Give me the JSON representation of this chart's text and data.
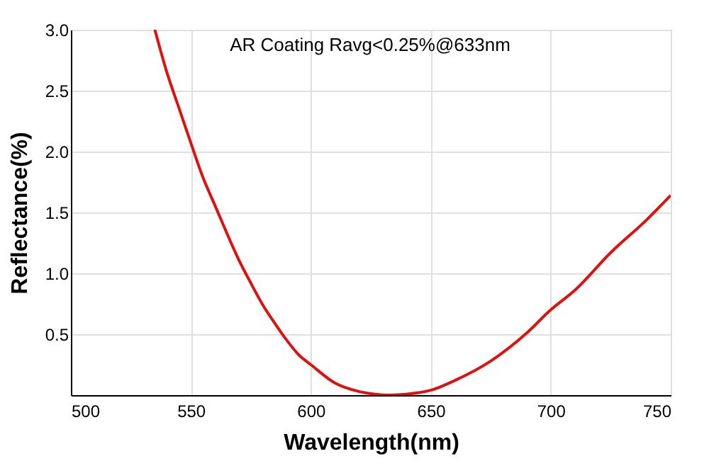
{
  "chart_data": {
    "type": "line",
    "xlabel": "Wavelength(nm)",
    "ylabel": "Reflectance(%)",
    "annotations": [
      "AR Coating Ravg<0.25%@633nm"
    ],
    "x": [
      535,
      540,
      545,
      550,
      555,
      560,
      565,
      570,
      575,
      580,
      585,
      590,
      595,
      600,
      610,
      620,
      633,
      645,
      650,
      660,
      675,
      690,
      700,
      710,
      725,
      740,
      750
    ],
    "series": [
      {
        "color": "#e01010",
        "values": [
          3.0,
          2.65,
          2.36,
          2.07,
          1.79,
          1.56,
          1.33,
          1.11,
          0.92,
          0.74,
          0.59,
          0.45,
          0.33,
          0.25,
          0.1,
          0.03,
          0.0,
          0.02,
          0.04,
          0.12,
          0.28,
          0.51,
          0.7,
          0.86,
          1.17,
          1.44,
          1.64
        ]
      }
    ],
    "xlim": [
      500,
      750
    ],
    "xticks": [
      500,
      550,
      600,
      650,
      700,
      750
    ],
    "ylim": [
      0,
      3.0
    ],
    "yticks": [
      0.5,
      {
        "value": 1,
        "label": "1.0"
      },
      1.5,
      {
        "value": 2,
        "label": "2.0"
      },
      2.5,
      {
        "value": 3,
        "label": "3.0"
      }
    ],
    "grid": true,
    "marker": "none",
    "line_style": "solid"
  }
}
